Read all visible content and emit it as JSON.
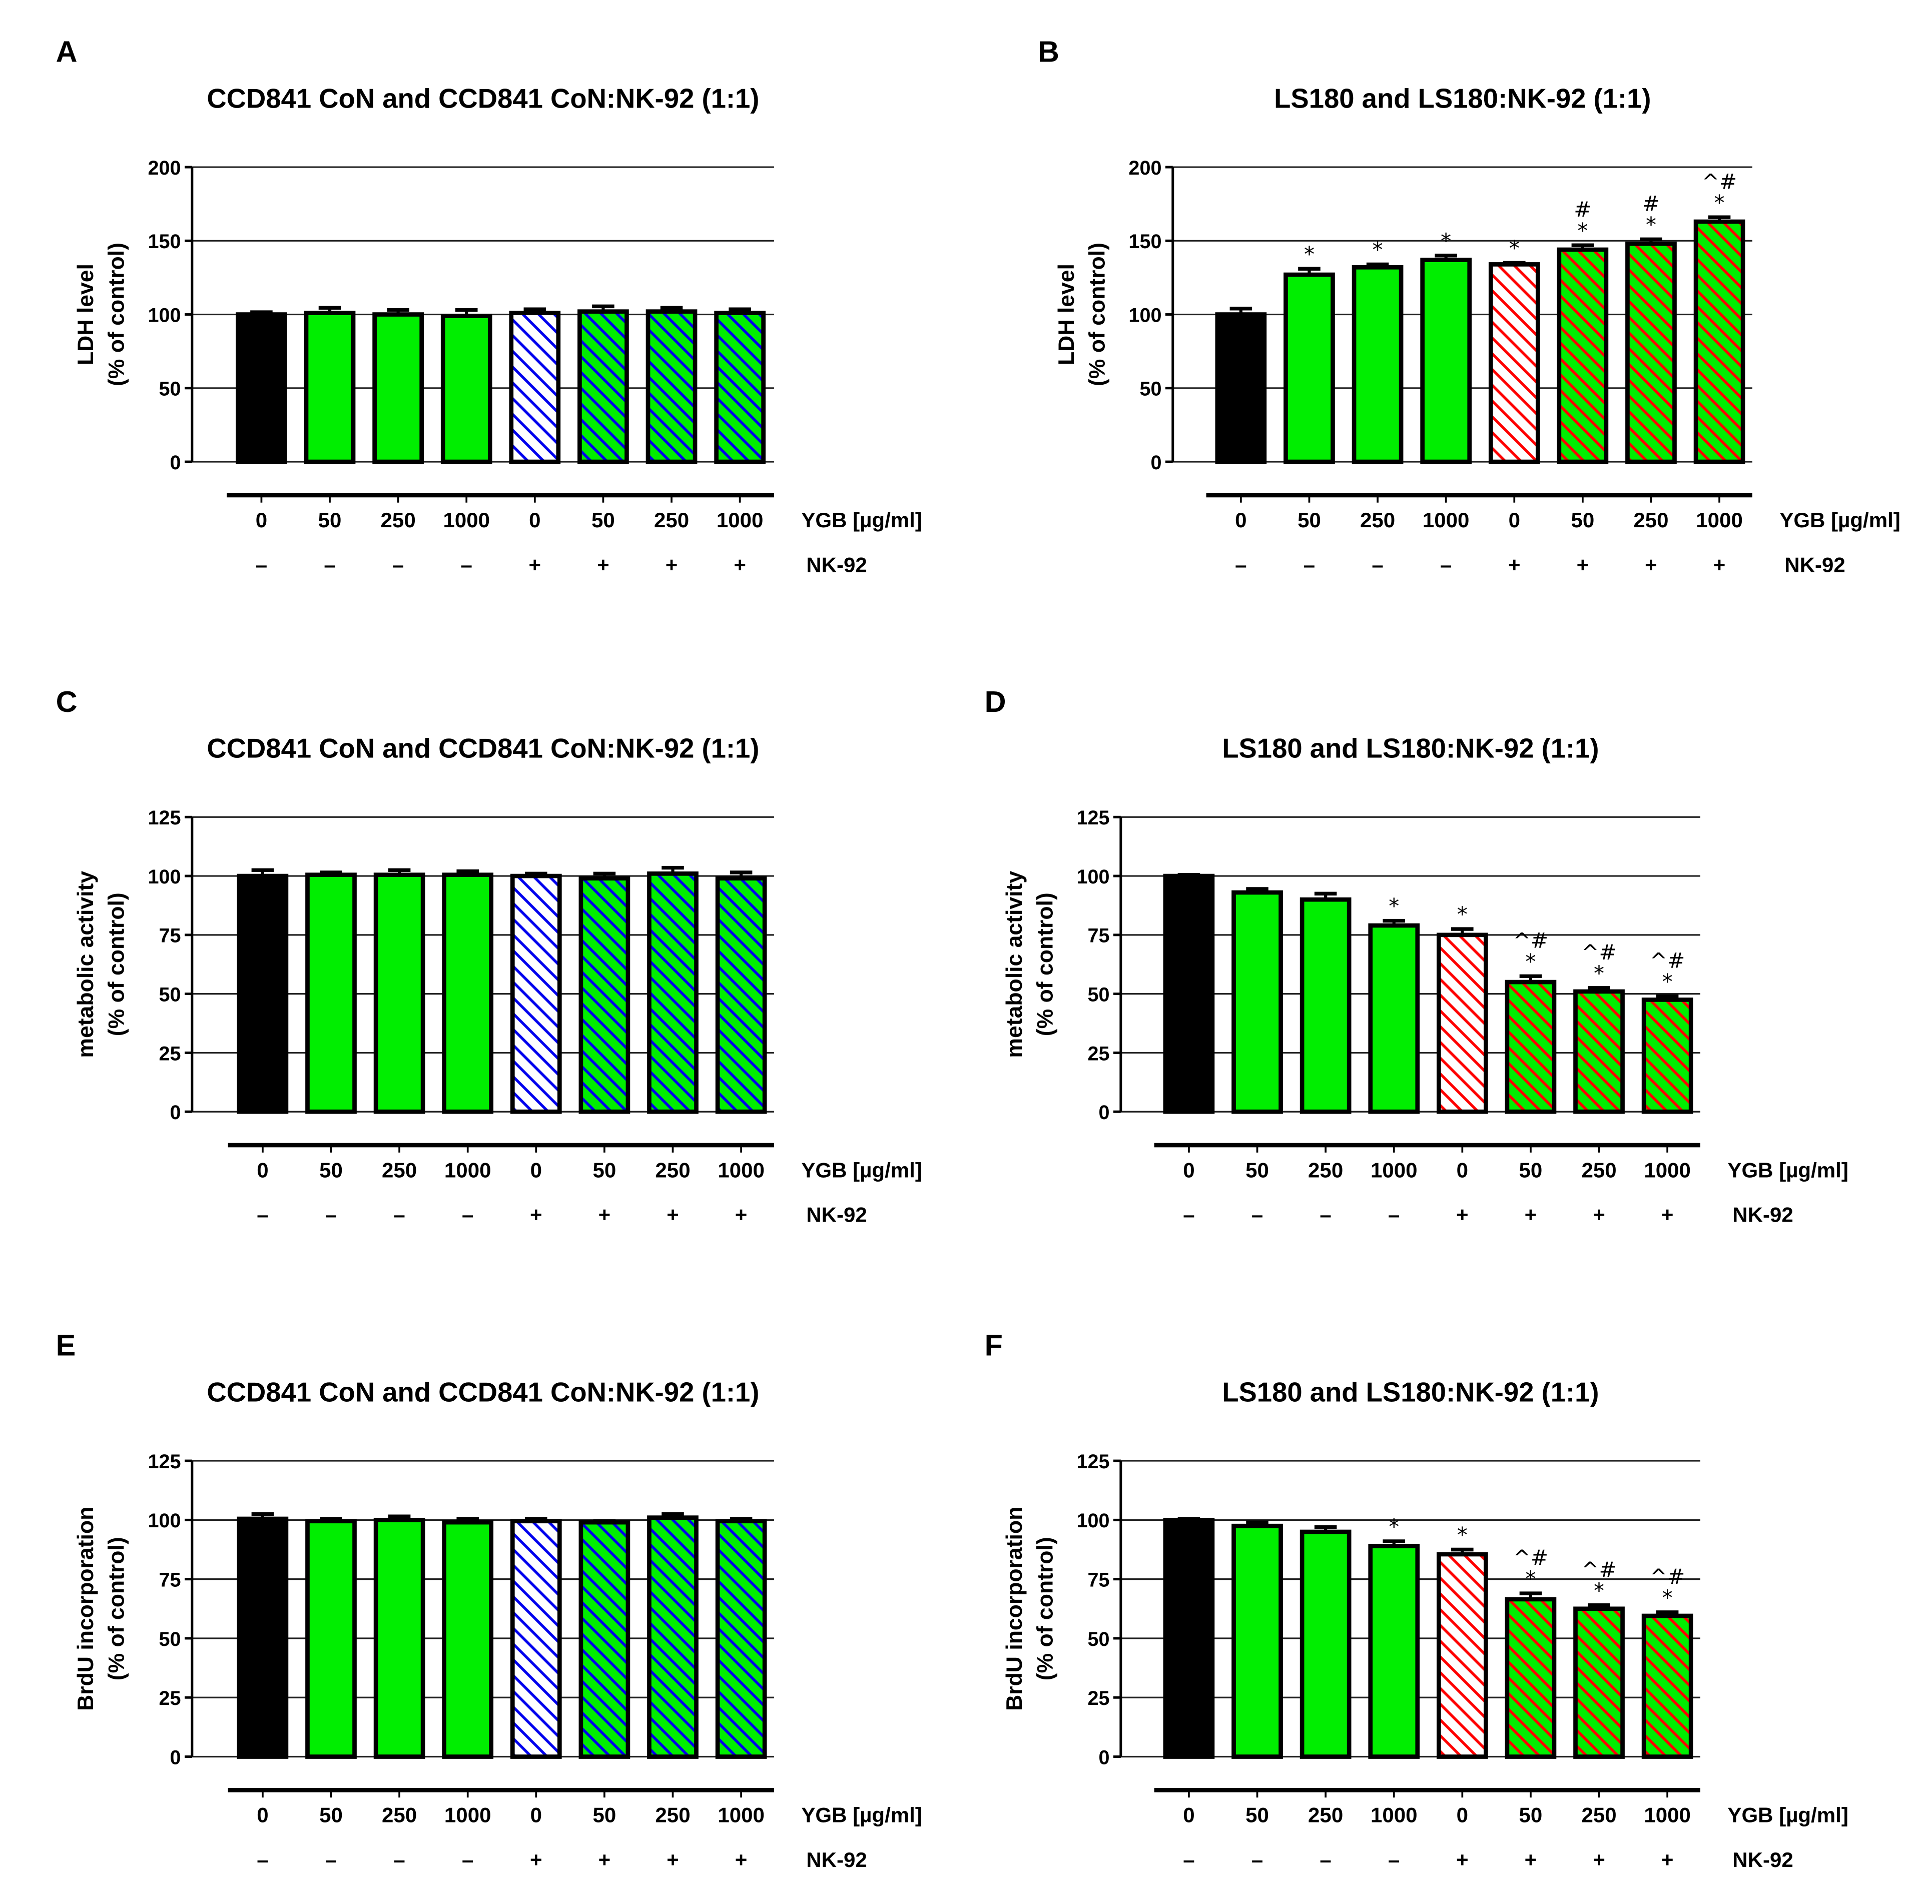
{
  "colors": {
    "control": "#000000",
    "ygb": "#00ee00",
    "nk_normal": "#0000ee",
    "nk_cancer": "#ff0000",
    "grid": "#000000"
  },
  "x_rows": {
    "ygb_label": "YGB [µg/ml]",
    "nk_label": "NK-92",
    "ygb_values": [
      "0",
      "50",
      "250",
      "1000",
      "0",
      "50",
      "250",
      "1000"
    ],
    "nk_values": [
      "–",
      "–",
      "–",
      "–",
      "+",
      "+",
      "+",
      "+"
    ]
  },
  "chart_data": [
    {
      "panel": "A",
      "type": "bar",
      "title": "CCD841 CoN and CCD841 CoN:NK-92 (1:1)",
      "ylabel": [
        "LDH level",
        "(% of control)"
      ],
      "ylim": [
        0,
        200
      ],
      "yticks": [
        "0",
        "50",
        "100",
        "150",
        "200"
      ],
      "grid": true,
      "hatch": "blue",
      "values": [
        100,
        101,
        100,
        99,
        101,
        102,
        102,
        101
      ],
      "errors": [
        1.5,
        3.5,
        3,
        4,
        2.5,
        3.5,
        2.5,
        2.5
      ],
      "annotations": [
        [],
        [],
        [],
        [],
        [],
        [],
        [],
        []
      ]
    },
    {
      "panel": "B",
      "type": "bar",
      "title": "LS180 and LS180:NK-92 (1:1)",
      "ylabel": [
        "LDH level",
        "(% of control)"
      ],
      "ylim": [
        0,
        200
      ],
      "yticks": [
        "0",
        "50",
        "100",
        "150",
        "200"
      ],
      "grid": true,
      "hatch": "red",
      "values": [
        100,
        127,
        132,
        137,
        134,
        144,
        148,
        163
      ],
      "errors": [
        4,
        4,
        2,
        3,
        1,
        3,
        3,
        3
      ],
      "annotations": [
        [],
        [
          "*"
        ],
        [
          "*"
        ],
        [
          "*"
        ],
        [
          "*"
        ],
        [
          "#",
          "*"
        ],
        [
          "#",
          "*"
        ],
        [
          "^#",
          "*"
        ]
      ]
    },
    {
      "panel": "C",
      "type": "bar",
      "title": "CCD841 CoN and CCD841 CoN:NK-92 (1:1)",
      "ylabel": [
        "metabolic activity",
        "(% of control)"
      ],
      "ylim": [
        0,
        125
      ],
      "yticks": [
        "0",
        "25",
        "50",
        "75",
        "100",
        "125"
      ],
      "grid": true,
      "hatch": "blue",
      "values": [
        100,
        100.5,
        100.5,
        100.5,
        100,
        99,
        101,
        99
      ],
      "errors": [
        2.5,
        1,
        2,
        1.5,
        1,
        2,
        2.5,
        2.5
      ],
      "annotations": [
        [],
        [],
        [],
        [],
        [],
        [],
        [],
        []
      ]
    },
    {
      "panel": "D",
      "type": "bar",
      "title": "LS180 and LS180:NK-92 (1:1)",
      "ylabel": [
        "metabolic activity",
        "(% of control)"
      ],
      "ylim": [
        0,
        125
      ],
      "yticks": [
        "0",
        "25",
        "50",
        "75",
        "100",
        "125"
      ],
      "grid": true,
      "hatch": "red",
      "values": [
        100,
        93,
        90,
        79,
        75,
        55,
        51,
        47.5
      ],
      "errors": [
        0.5,
        1.5,
        2.5,
        2,
        2.5,
        2.5,
        1.5,
        1.5
      ],
      "annotations": [
        [],
        [],
        [],
        [
          "*"
        ],
        [
          "*"
        ],
        [
          "^#",
          "*"
        ],
        [
          "^#",
          "*"
        ],
        [
          "^#",
          "*"
        ]
      ]
    },
    {
      "panel": "E",
      "type": "bar",
      "title": "CCD841 CoN and CCD841 CoN:NK-92 (1:1)",
      "ylabel": [
        "BrdU incorporation",
        "(% of control)"
      ],
      "ylim": [
        0,
        125
      ],
      "yticks": [
        "0",
        "25",
        "50",
        "75",
        "100",
        "125"
      ],
      "grid": true,
      "hatch": "blue",
      "values": [
        100.5,
        99.5,
        100,
        99,
        99.5,
        99,
        101,
        99.5
      ],
      "errors": [
        2,
        1,
        1.5,
        1.5,
        1,
        0.5,
        1.5,
        1
      ],
      "annotations": [
        [],
        [],
        [],
        [],
        [],
        [],
        [],
        []
      ]
    },
    {
      "panel": "F",
      "type": "bar",
      "title": "LS180 and LS180:NK-92 (1:1)",
      "ylabel": [
        "BrdU incorporation",
        "(% of control)"
      ],
      "ylim": [
        0,
        125
      ],
      "yticks": [
        "0",
        "25",
        "50",
        "75",
        "100",
        "125"
      ],
      "grid": true,
      "hatch": "red",
      "values": [
        100,
        97.5,
        95,
        89,
        85.5,
        66.5,
        62.5,
        59.5
      ],
      "errors": [
        0.5,
        1.5,
        2,
        2,
        2,
        2.5,
        1.5,
        1.5
      ],
      "annotations": [
        [],
        [],
        [],
        [
          "*"
        ],
        [
          "*"
        ],
        [
          "^#",
          "*"
        ],
        [
          "^#",
          "*"
        ],
        [
          "^#",
          "*"
        ]
      ]
    }
  ]
}
